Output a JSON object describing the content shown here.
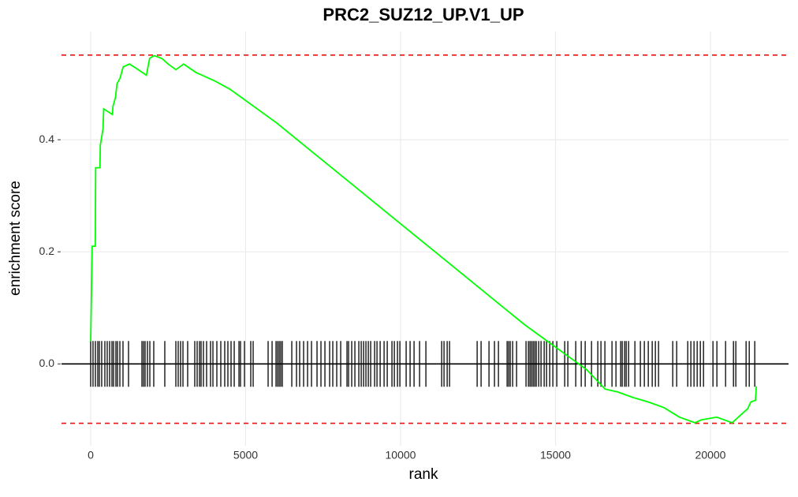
{
  "chart_data": {
    "type": "line",
    "title": "PRC2_SUZ12_UP.V1_UP",
    "x_label": "rank",
    "y_label": "enrichment score",
    "xlim": [
      -941,
      22519
    ],
    "ylim": [
      -0.146,
      0.593
    ],
    "xticks": [
      0,
      5000,
      10000,
      15000,
      20000
    ],
    "yticks": [
      {
        "value": 0,
        "label": "0.0"
      },
      0.2,
      0.4
    ],
    "grid": true,
    "series": [
      {
        "color": "#00ff00",
        "x": [
          0,
          50,
          150,
          160,
          300,
          310,
          400,
          420,
          700,
          720,
          800,
          850,
          950,
          1050,
          1250,
          1400,
          1800,
          1900,
          2050,
          2300,
          2500,
          2750,
          3000,
          3400,
          4000,
          4500,
          5000,
          6000,
          7000,
          8000,
          9000,
          10000,
          11000,
          12000,
          13000,
          14000,
          15000,
          16000,
          16600,
          17000,
          17500,
          18000,
          18500,
          19000,
          19500,
          19700,
          20200,
          20700,
          21000,
          21200,
          21300,
          21450,
          21480
        ],
        "values": [
          0.04,
          0.21,
          0.21,
          0.35,
          0.35,
          0.39,
          0.42,
          0.455,
          0.445,
          0.46,
          0.475,
          0.5,
          0.51,
          0.53,
          0.535,
          0.53,
          0.515,
          0.545,
          0.55,
          0.545,
          0.535,
          0.525,
          0.535,
          0.52,
          0.505,
          0.49,
          0.47,
          0.43,
          0.385,
          0.34,
          0.295,
          0.25,
          0.205,
          0.16,
          0.115,
          0.07,
          0.03,
          -0.01,
          -0.045,
          -0.05,
          -0.06,
          -0.068,
          -0.078,
          -0.095,
          -0.105,
          -0.1,
          -0.095,
          -0.105,
          -0.09,
          -0.08,
          -0.068,
          -0.065,
          -0.04
        ]
      }
    ],
    "hits": [
      0,
      76,
      153,
      229,
      280,
      356,
      458,
      534,
      611,
      687,
      738,
      814,
      865,
      942,
      1043,
      1221,
      1654,
      1705,
      1756,
      1832,
      1909,
      2036,
      2392,
      2749,
      2825,
      2901,
      2978,
      3130,
      3359,
      3436,
      3512,
      3563,
      3639,
      3741,
      3868,
      3945,
      4072,
      4199,
      4326,
      4428,
      4530,
      4632,
      4785,
      4835,
      4963,
      5166,
      5243,
      5726,
      5854,
      5981,
      6032,
      6083,
      6133,
      6184,
      6490,
      6642,
      6744,
      6871,
      6999,
      7126,
      7304,
      7431,
      7559,
      7711,
      7813,
      7940,
      8068,
      8271,
      8322,
      8424,
      8526,
      8653,
      8730,
      8806,
      8882,
      8959,
      9035,
      9162,
      9239,
      9341,
      9468,
      9570,
      9722,
      9799,
      9900,
      9977,
      10180,
      10307,
      10435,
      10613,
      10817,
      11326,
      11402,
      11504,
      11580,
      12471,
      12598,
      12853,
      13030,
      13158,
      13438,
      13488,
      13539,
      13616,
      13743,
      14048,
      14125,
      14176,
      14227,
      14278,
      14329,
      14379,
      14456,
      14532,
      14634,
      14710,
      14812,
      14914,
      15041,
      15296,
      15397,
      15652,
      15830,
      15957,
      16161,
      16364,
      16466,
      16593,
      16822,
      16950,
      17102,
      17153,
      17230,
      17281,
      17357,
      17561,
      17738,
      17866,
      17993,
      18120,
      18222,
      18324,
      18782,
      18909,
      19266,
      19367,
      19469,
      19571,
      19673,
      19775,
      20080,
      20207,
      20487,
      20742,
      20818,
      21149,
      21251,
      21429
    ],
    "hlines": [
      {
        "value": 0.551,
        "color": "#ee1111",
        "dashed": true
      },
      {
        "value": -0.106,
        "color": "#ee1111",
        "dashed": true
      },
      {
        "value": 0,
        "color": "#000000",
        "dashed": false
      }
    ]
  }
}
